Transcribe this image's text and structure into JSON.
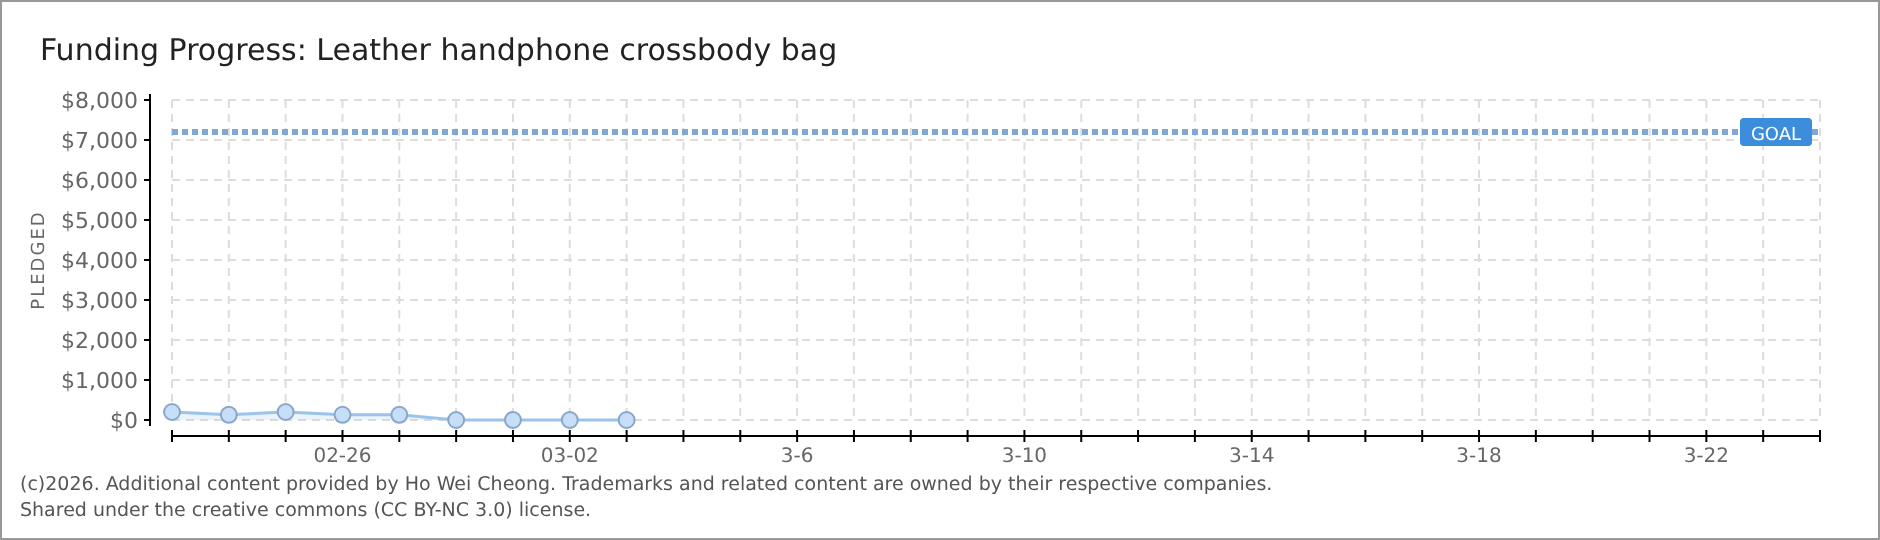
{
  "chart_data": {
    "type": "area",
    "title": "Funding Progress: Leather handphone crossbody bag",
    "ylabel": "PLEDGED",
    "x": [
      "--02-23",
      "--02-24",
      "--02-25",
      "--02-26",
      "--02-27",
      "--02-28",
      "--03-01",
      "--03-02",
      "--03-03"
    ],
    "series": [
      {
        "color": "#9cc3ec",
        "values": [
          200,
          130,
          200,
          130,
          130,
          0,
          0,
          0,
          0
        ]
      }
    ],
    "marker": "circle",
    "grid": true,
    "ylim": [
      0,
      8000
    ],
    "yticks": [
      {
        "value": 0,
        "label": "$0"
      },
      {
        "value": 1000,
        "label": "$1,000"
      },
      {
        "value": 2000,
        "label": "$2,000"
      },
      {
        "value": 3000,
        "label": "$3,000"
      },
      {
        "value": 4000,
        "label": "$4,000"
      },
      {
        "value": 5000,
        "label": "$5,000"
      },
      {
        "value": 6000,
        "label": "$6,000"
      },
      {
        "value": 7000,
        "label": "$7,000"
      },
      {
        "value": 8000,
        "label": "$8,000"
      }
    ],
    "xlim": [
      "--02-23",
      "--03-24"
    ],
    "xticks": [
      {
        "value": "--02-23",
        "label": null
      },
      {
        "value": "--02-24",
        "label": null
      },
      {
        "value": "--02-25",
        "label": null
      },
      {
        "value": "--02-26",
        "label": "02-26"
      },
      {
        "value": "--02-27",
        "label": null
      },
      {
        "value": "--02-28",
        "label": null
      },
      {
        "value": "--03-01",
        "label": null
      },
      {
        "value": "--03-02",
        "label": "03-02"
      },
      {
        "value": "--03-03",
        "label": null
      },
      {
        "value": "--03-04",
        "label": null
      },
      {
        "value": "--03-05",
        "label": null
      },
      {
        "value": "--03-06",
        "label": "3-6"
      },
      {
        "value": "--03-07",
        "label": null
      },
      {
        "value": "--03-08",
        "label": null
      },
      {
        "value": "--03-09",
        "label": null
      },
      {
        "value": "--03-10",
        "label": "3-10"
      },
      {
        "value": "--03-11",
        "label": null
      },
      {
        "value": "--03-12",
        "label": null
      },
      {
        "value": "--03-13",
        "label": null
      },
      {
        "value": "--03-14",
        "label": "3-14"
      },
      {
        "value": "--03-15",
        "label": null
      },
      {
        "value": "--03-16",
        "label": null
      },
      {
        "value": "--03-17",
        "label": null
      },
      {
        "value": "--03-18",
        "label": "3-18"
      },
      {
        "value": "--03-19",
        "label": null
      },
      {
        "value": "--03-20",
        "label": null
      },
      {
        "value": "--03-21",
        "label": null
      },
      {
        "value": "--03-22",
        "label": "3-22"
      },
      {
        "value": "--03-23",
        "label": null
      },
      {
        "value": "--03-24",
        "label": null
      }
    ],
    "ref_lines": [
      {
        "axis": "y",
        "value": 7200,
        "label": "GOAL",
        "color": "#7fa8d8",
        "line_style": "dotted"
      }
    ],
    "annotations": [
      "(c)2026. Additional content provided by Ho Wei Cheong. Trademarks and related content are owned by their respective companies.",
      "Shared under the creative commons (CC BY-NC 3.0) license."
    ]
  }
}
